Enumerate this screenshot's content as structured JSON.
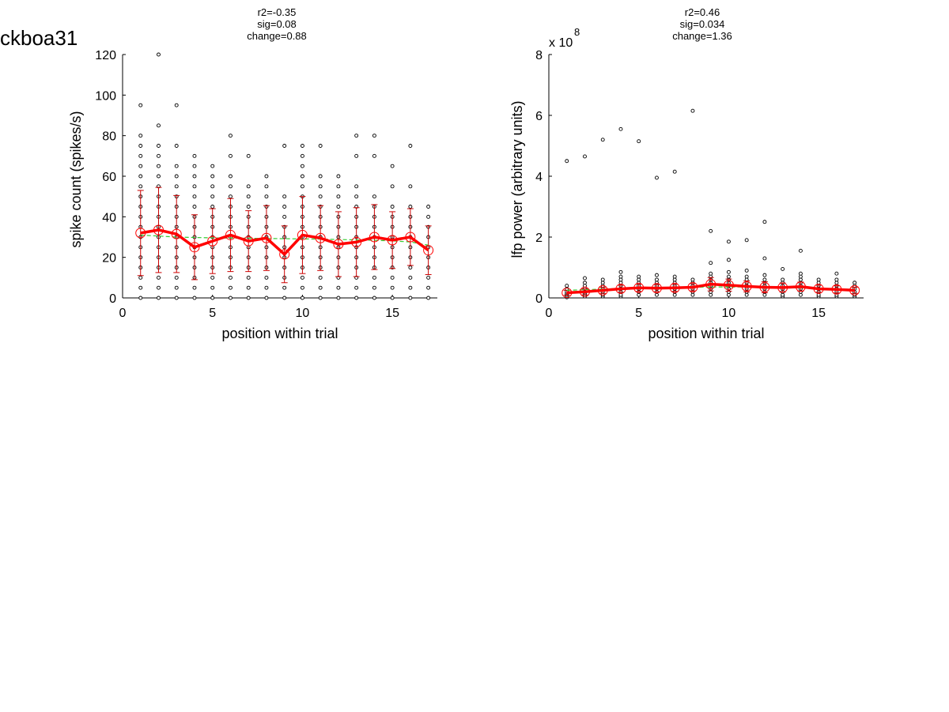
{
  "figure_title": "ckboa31",
  "chart_data": [
    {
      "type": "scatter",
      "stats": [
        "r2=-0.35",
        "sig=0.08",
        "change=0.88"
      ],
      "xlabel": "position within trial",
      "ylabel": "spike count (spikes/s)",
      "xlim": [
        0,
        17.5
      ],
      "ylim": [
        0,
        120
      ],
      "xticks": [
        0,
        5,
        10,
        15
      ],
      "yticks": [
        0,
        20,
        40,
        60,
        80,
        100,
        120
      ],
      "exponent_label": "",
      "grid": false,
      "colors": {
        "points": "#000000",
        "mean": "#ff0000",
        "errorbar": "#cc0000",
        "fit": "#33cc33"
      },
      "points": [
        {
          "x": 1,
          "y": [
            0,
            5,
            10,
            15,
            20,
            25,
            30,
            35,
            40,
            45,
            50,
            55,
            60,
            65,
            70,
            75,
            80,
            95
          ]
        },
        {
          "x": 2,
          "y": [
            0,
            5,
            10,
            15,
            20,
            25,
            30,
            35,
            40,
            45,
            50,
            55,
            60,
            65,
            70,
            75,
            85,
            120
          ]
        },
        {
          "x": 3,
          "y": [
            0,
            5,
            10,
            15,
            20,
            25,
            30,
            35,
            40,
            45,
            50,
            55,
            60,
            65,
            75,
            95
          ]
        },
        {
          "x": 4,
          "y": [
            0,
            5,
            10,
            15,
            20,
            25,
            30,
            35,
            40,
            45,
            50,
            55,
            60,
            65,
            70
          ]
        },
        {
          "x": 5,
          "y": [
            0,
            5,
            10,
            15,
            20,
            25,
            30,
            35,
            40,
            45,
            50,
            55,
            60,
            65
          ]
        },
        {
          "x": 6,
          "y": [
            0,
            5,
            10,
            15,
            20,
            25,
            30,
            35,
            40,
            45,
            50,
            55,
            60,
            70,
            80
          ]
        },
        {
          "x": 7,
          "y": [
            0,
            5,
            10,
            15,
            20,
            25,
            30,
            35,
            40,
            45,
            50,
            55,
            70
          ]
        },
        {
          "x": 8,
          "y": [
            0,
            5,
            10,
            15,
            20,
            25,
            30,
            35,
            40,
            45,
            50,
            55,
            60
          ]
        },
        {
          "x": 9,
          "y": [
            0,
            5,
            10,
            15,
            20,
            25,
            30,
            35,
            40,
            45,
            50,
            75
          ]
        },
        {
          "x": 10,
          "y": [
            0,
            5,
            10,
            15,
            20,
            25,
            30,
            35,
            40,
            45,
            50,
            55,
            60,
            65,
            70,
            75
          ]
        },
        {
          "x": 11,
          "y": [
            0,
            5,
            10,
            15,
            20,
            25,
            30,
            35,
            40,
            45,
            50,
            55,
            60,
            75
          ]
        },
        {
          "x": 12,
          "y": [
            0,
            5,
            10,
            15,
            20,
            25,
            30,
            35,
            40,
            45,
            50,
            55,
            60
          ]
        },
        {
          "x": 13,
          "y": [
            0,
            5,
            10,
            15,
            20,
            25,
            30,
            35,
            40,
            45,
            50,
            55,
            70,
            80
          ]
        },
        {
          "x": 14,
          "y": [
            0,
            5,
            10,
            15,
            20,
            25,
            30,
            35,
            40,
            45,
            50,
            70,
            80
          ]
        },
        {
          "x": 15,
          "y": [
            0,
            5,
            10,
            15,
            20,
            25,
            30,
            35,
            40,
            45,
            55,
            65
          ]
        },
        {
          "x": 16,
          "y": [
            0,
            5,
            10,
            15,
            20,
            25,
            30,
            35,
            40,
            45,
            55,
            75
          ]
        },
        {
          "x": 17,
          "y": [
            0,
            5,
            10,
            15,
            20,
            25,
            30,
            35,
            40,
            45
          ]
        }
      ],
      "mean": {
        "x": [
          1,
          2,
          3,
          4,
          5,
          6,
          7,
          8,
          9,
          10,
          11,
          12,
          13,
          14,
          15,
          16,
          17
        ],
        "y": [
          32,
          33.5,
          31.5,
          25,
          28,
          31,
          28,
          29.5,
          21.5,
          31,
          29.5,
          26.5,
          27.5,
          30,
          28.5,
          30,
          23.5
        ],
        "err": [
          21,
          21,
          19,
          16,
          16,
          18,
          15,
          16,
          14,
          19,
          16,
          16,
          17,
          16,
          14,
          14,
          12
        ]
      },
      "fit": {
        "x": [
          1,
          2,
          3,
          4,
          5,
          6,
          7,
          8,
          9,
          10,
          11,
          12,
          13,
          14,
          15,
          16,
          17
        ],
        "y": [
          31,
          30.5,
          30,
          29.8,
          29.6,
          29.5,
          29.4,
          29.3,
          29.2,
          29.1,
          29,
          28.8,
          28.6,
          28.4,
          28.1,
          27.6,
          26
        ]
      }
    },
    {
      "type": "scatter",
      "stats": [
        "r2=0.46",
        "sig=0.034",
        "change=1.36"
      ],
      "xlabel": "position within trial",
      "ylabel": "lfp power (arbitrary units)",
      "xlim": [
        0,
        17.5
      ],
      "ylim": [
        0,
        8
      ],
      "xticks": [
        0,
        5,
        10,
        15
      ],
      "yticks": [
        0,
        2,
        4,
        6,
        8
      ],
      "exponent_label": "x 10",
      "exponent": "8",
      "grid": false,
      "colors": {
        "points": "#000000",
        "mean": "#ff0000",
        "errorbar": "#cc0000",
        "fit": "#33cc33"
      },
      "points": [
        {
          "x": 1,
          "y": [
            0.02,
            0.05,
            0.1,
            0.15,
            0.2,
            0.3,
            0.4,
            4.5
          ]
        },
        {
          "x": 2,
          "y": [
            0.05,
            0.1,
            0.15,
            0.2,
            0.3,
            0.4,
            0.5,
            0.65,
            4.65
          ]
        },
        {
          "x": 3,
          "y": [
            0.05,
            0.1,
            0.2,
            0.3,
            0.4,
            0.5,
            0.6,
            5.2
          ]
        },
        {
          "x": 4,
          "y": [
            0.05,
            0.1,
            0.2,
            0.3,
            0.4,
            0.5,
            0.6,
            0.7,
            0.85,
            5.55
          ]
        },
        {
          "x": 5,
          "y": [
            0.1,
            0.2,
            0.3,
            0.4,
            0.5,
            0.6,
            0.7,
            5.15
          ]
        },
        {
          "x": 6,
          "y": [
            0.1,
            0.2,
            0.3,
            0.4,
            0.5,
            0.6,
            0.75,
            3.95
          ]
        },
        {
          "x": 7,
          "y": [
            0.1,
            0.2,
            0.3,
            0.4,
            0.5,
            0.6,
            0.7,
            4.15
          ]
        },
        {
          "x": 8,
          "y": [
            0.1,
            0.2,
            0.3,
            0.4,
            0.5,
            0.6,
            6.15
          ]
        },
        {
          "x": 9,
          "y": [
            0.1,
            0.2,
            0.3,
            0.4,
            0.5,
            0.6,
            0.7,
            0.8,
            1.15,
            2.2
          ]
        },
        {
          "x": 10,
          "y": [
            0.1,
            0.2,
            0.3,
            0.4,
            0.5,
            0.6,
            0.7,
            0.85,
            1.25,
            1.85
          ]
        },
        {
          "x": 11,
          "y": [
            0.1,
            0.2,
            0.3,
            0.4,
            0.5,
            0.6,
            0.7,
            0.9,
            1.9
          ]
        },
        {
          "x": 12,
          "y": [
            0.1,
            0.2,
            0.3,
            0.4,
            0.5,
            0.6,
            0.75,
            1.3,
            2.5
          ]
        },
        {
          "x": 13,
          "y": [
            0.05,
            0.1,
            0.2,
            0.3,
            0.4,
            0.5,
            0.6,
            0.95
          ]
        },
        {
          "x": 14,
          "y": [
            0.1,
            0.2,
            0.3,
            0.4,
            0.5,
            0.6,
            0.7,
            0.8,
            1.55
          ]
        },
        {
          "x": 15,
          "y": [
            0.05,
            0.1,
            0.2,
            0.3,
            0.4,
            0.5,
            0.6
          ]
        },
        {
          "x": 16,
          "y": [
            0.05,
            0.1,
            0.2,
            0.3,
            0.4,
            0.5,
            0.6,
            0.8
          ]
        },
        {
          "x": 17,
          "y": [
            0.05,
            0.1,
            0.2,
            0.3,
            0.4,
            0.5
          ]
        }
      ],
      "mean": {
        "x": [
          1,
          2,
          3,
          4,
          5,
          6,
          7,
          8,
          9,
          10,
          11,
          12,
          13,
          14,
          15,
          16,
          17
        ],
        "y": [
          0.17,
          0.2,
          0.25,
          0.3,
          0.33,
          0.32,
          0.33,
          0.35,
          0.45,
          0.42,
          0.38,
          0.35,
          0.34,
          0.37,
          0.3,
          0.28,
          0.25
        ],
        "err": [
          0.08,
          0.1,
          0.1,
          0.12,
          0.12,
          0.12,
          0.12,
          0.12,
          0.22,
          0.2,
          0.18,
          0.18,
          0.15,
          0.15,
          0.12,
          0.12,
          0.1
        ]
      },
      "fit": {
        "x": [
          1,
          2,
          3,
          4,
          5,
          6,
          7,
          8,
          9,
          10,
          11,
          12,
          13,
          14,
          15,
          16,
          17
        ],
        "y": [
          0.25,
          0.27,
          0.29,
          0.31,
          0.32,
          0.33,
          0.34,
          0.35,
          0.36,
          0.36,
          0.36,
          0.35,
          0.34,
          0.33,
          0.32,
          0.3,
          0.28
        ]
      }
    }
  ]
}
